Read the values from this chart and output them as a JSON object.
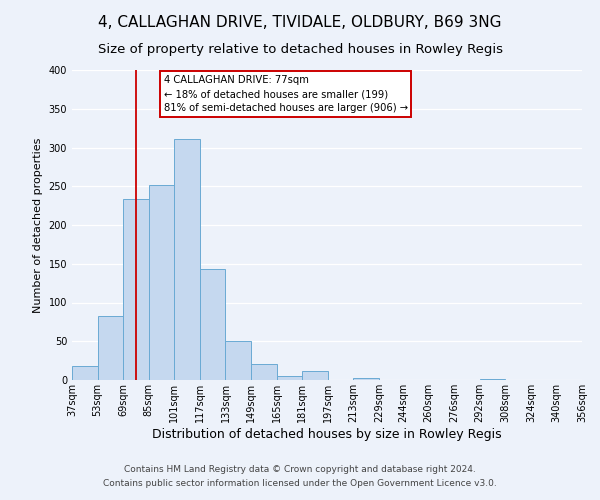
{
  "title": "4, CALLAGHAN DRIVE, TIVIDALE, OLDBURY, B69 3NG",
  "subtitle": "Size of property relative to detached houses in Rowley Regis",
  "xlabel": "Distribution of detached houses by size in Rowley Regis",
  "ylabel": "Number of detached properties",
  "bin_edges": [
    37,
    53,
    69,
    85,
    101,
    117,
    133,
    149,
    165,
    181,
    197,
    213,
    229,
    244,
    260,
    276,
    292,
    308,
    324,
    340,
    356
  ],
  "bar_heights": [
    18,
    83,
    233,
    251,
    311,
    143,
    50,
    21,
    5,
    11,
    0,
    3,
    0,
    0,
    0,
    0,
    1,
    0,
    0,
    0
  ],
  "bar_color": "#c5d8ef",
  "bar_edge_color": "#6aaad4",
  "tick_labels": [
    "37sqm",
    "53sqm",
    "69sqm",
    "85sqm",
    "101sqm",
    "117sqm",
    "133sqm",
    "149sqm",
    "165sqm",
    "181sqm",
    "197sqm",
    "213sqm",
    "229sqm",
    "244sqm",
    "260sqm",
    "276sqm",
    "292sqm",
    "308sqm",
    "324sqm",
    "340sqm",
    "356sqm"
  ],
  "vline_x": 77,
  "vline_color": "#cc0000",
  "ylim": [
    0,
    400
  ],
  "yticks": [
    0,
    50,
    100,
    150,
    200,
    250,
    300,
    350,
    400
  ],
  "annotation_title": "4 CALLAGHAN DRIVE: 77sqm",
  "annotation_line1": "← 18% of detached houses are smaller (199)",
  "annotation_line2": "81% of semi-detached houses are larger (906) →",
  "annotation_box_color": "#ffffff",
  "annotation_box_edge": "#cc0000",
  "footer_line1": "Contains HM Land Registry data © Crown copyright and database right 2024.",
  "footer_line2": "Contains public sector information licensed under the Open Government Licence v3.0.",
  "background_color": "#edf2fa",
  "grid_color": "#ffffff",
  "title_fontsize": 11,
  "subtitle_fontsize": 9.5,
  "xlabel_fontsize": 9,
  "ylabel_fontsize": 8,
  "tick_fontsize": 7,
  "footer_fontsize": 6.5
}
